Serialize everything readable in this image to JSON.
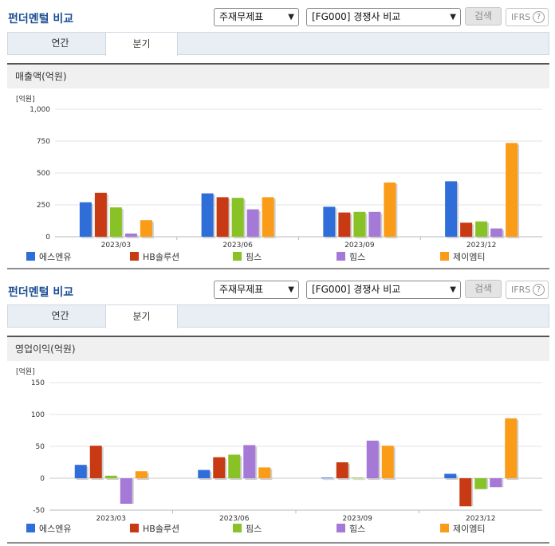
{
  "panels": [
    {
      "title": "펀더멘털 비교",
      "select1": "주재무제표",
      "select2": "[FG000] 경쟁사 비교",
      "search_label": "검색",
      "ifrs_label": "IFRS",
      "help_symbol": "?",
      "tabs": [
        "연간",
        "분기"
      ],
      "active_tab": "분기",
      "chart_title": "매출액(억원)"
    },
    {
      "title": "펀더멘털 비교",
      "select1": "주재무제표",
      "select2": "[FG000] 경쟁사 비교",
      "search_label": "검색",
      "ifrs_label": "IFRS",
      "help_symbol": "?",
      "tabs": [
        "연간",
        "분기"
      ],
      "active_tab": "분기",
      "chart_title": "영업이익(억원)"
    }
  ],
  "chart_data": [
    {
      "type": "bar",
      "title": "매출액(억원)",
      "unit": "[억원]",
      "categories": [
        "2023/03",
        "2023/06",
        "2023/09",
        "2023/12"
      ],
      "ylim": [
        0,
        1000
      ],
      "yticks": [
        0,
        250,
        500,
        750,
        1000
      ],
      "ytick_labels": [
        "0",
        "250",
        "500",
        "750",
        "1,000"
      ],
      "grid": true,
      "legend_position": "bottom",
      "series": [
        {
          "name": "에스엔유",
          "color": "#2f6ed8",
          "values": [
            270,
            340,
            235,
            435
          ]
        },
        {
          "name": "HB솔루션",
          "color": "#c73a14",
          "values": [
            345,
            310,
            190,
            110
          ]
        },
        {
          "name": "핌스",
          "color": "#88c227",
          "values": [
            230,
            305,
            195,
            120
          ]
        },
        {
          "name": "힘스",
          "color": "#a57ad6",
          "values": [
            25,
            215,
            195,
            65
          ]
        },
        {
          "name": "제이엠티",
          "color": "#fa9c18",
          "values": [
            130,
            310,
            425,
            735
          ]
        }
      ]
    },
    {
      "type": "bar",
      "title": "영업이익(억원)",
      "unit": "[억원]",
      "categories": [
        "2023/03",
        "2023/06",
        "2023/09",
        "2023/12"
      ],
      "ylim": [
        -50,
        150
      ],
      "yticks": [
        -50,
        0,
        50,
        100,
        150
      ],
      "ytick_labels": [
        "-50",
        "0",
        "50",
        "100",
        "150"
      ],
      "grid": true,
      "legend_position": "bottom",
      "series": [
        {
          "name": "에스엔유",
          "color": "#2f6ed8",
          "values": [
            21,
            13,
            1,
            7
          ]
        },
        {
          "name": "HB솔루션",
          "color": "#c73a14",
          "values": [
            51,
            33,
            25,
            -44
          ]
        },
        {
          "name": "핌스",
          "color": "#88c227",
          "values": [
            4,
            37,
            1,
            -17
          ]
        },
        {
          "name": "힘스",
          "color": "#a57ad6",
          "values": [
            -40,
            52,
            59,
            -14
          ]
        },
        {
          "name": "제이엠티",
          "color": "#fa9c18",
          "values": [
            11,
            17,
            51,
            94
          ]
        }
      ]
    }
  ]
}
